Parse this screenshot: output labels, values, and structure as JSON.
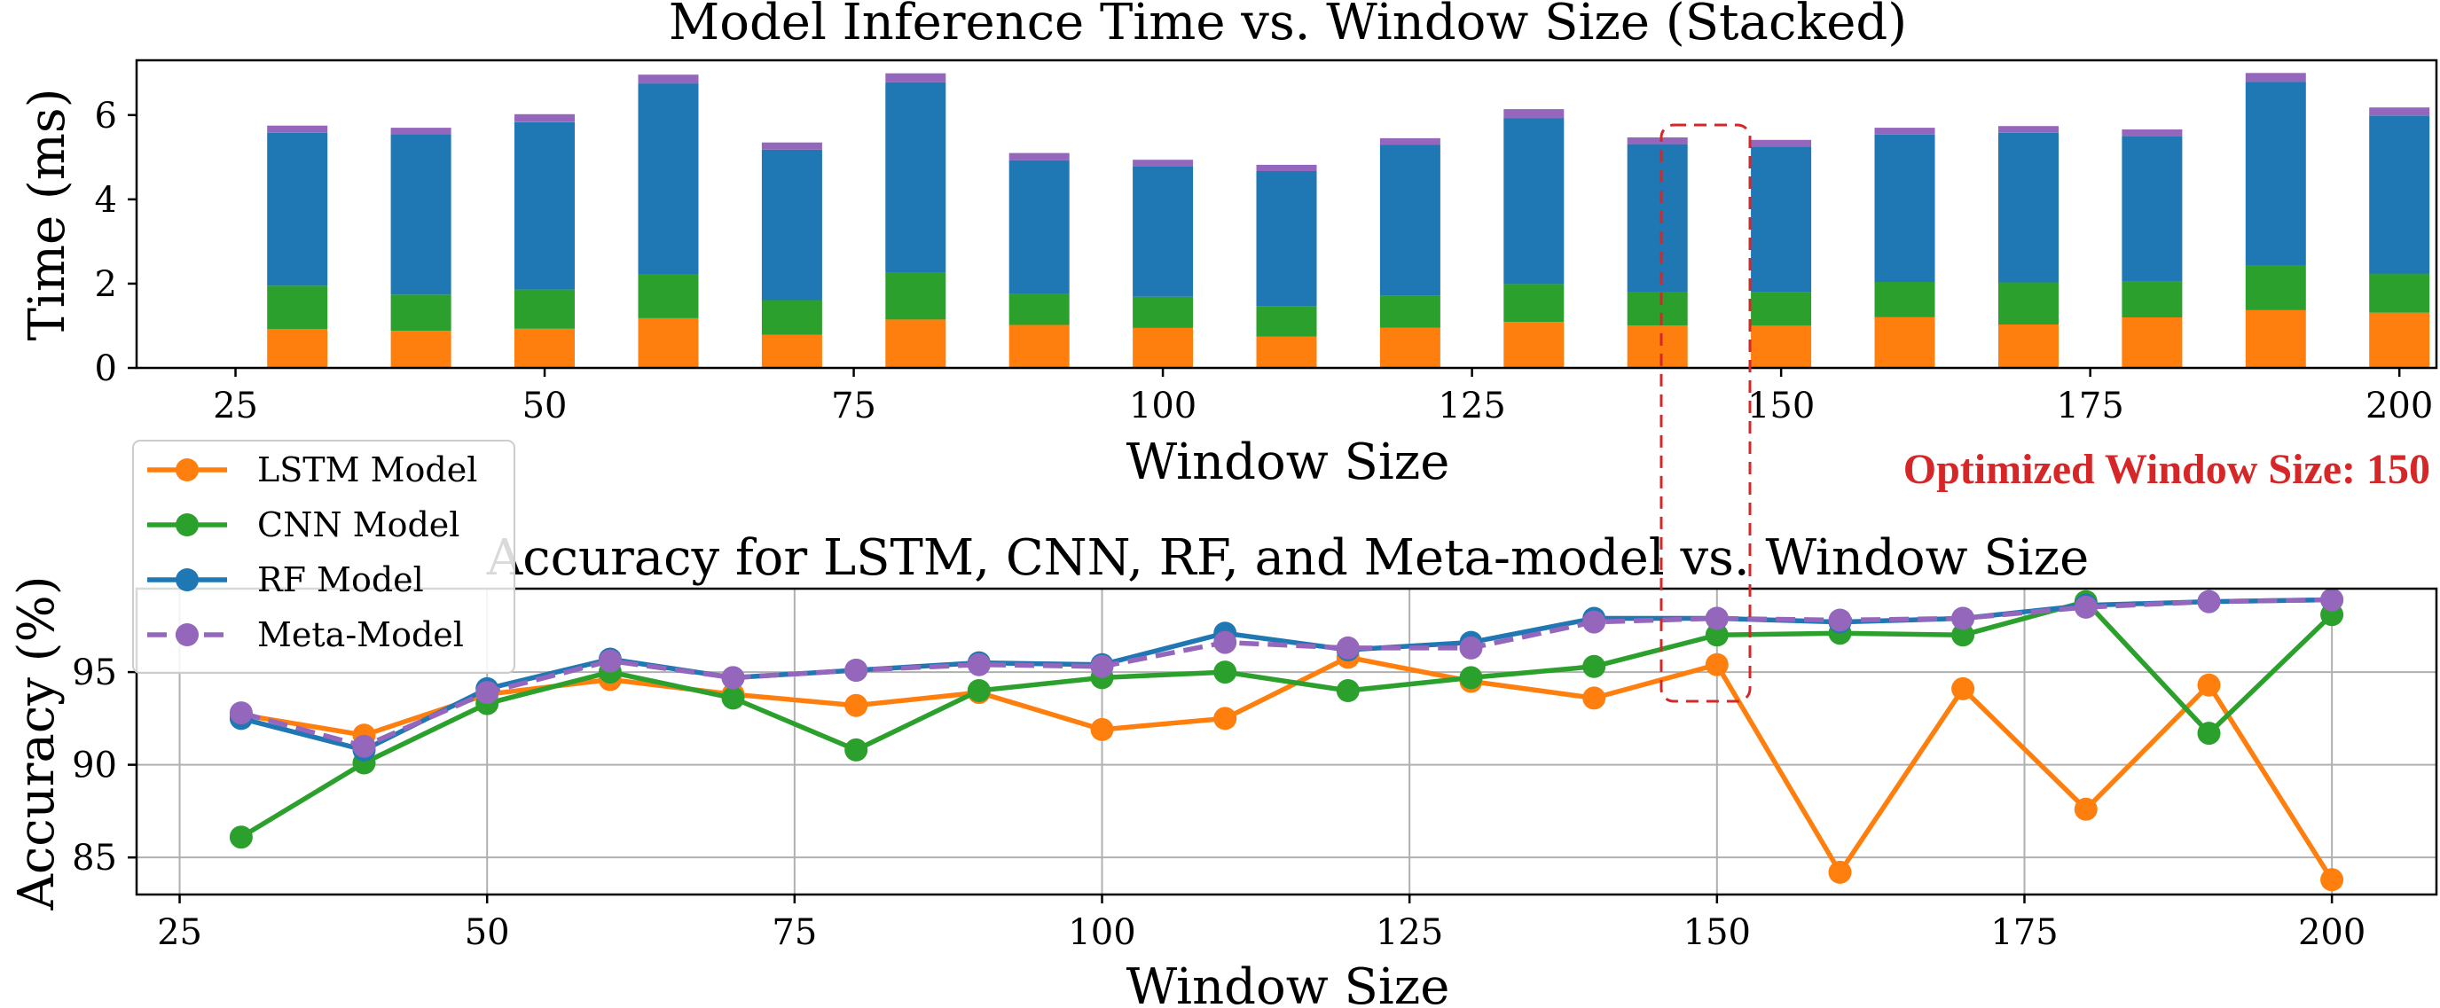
{
  "colors": {
    "lstm": "#ff7f0e",
    "cnn": "#2ca02c",
    "rf": "#1f77b4",
    "meta": "#9467bd",
    "grid": "#b0b0b0",
    "annotation": "#d62728"
  },
  "chart_data": [
    {
      "type": "bar",
      "stacked": true,
      "title": "Model Inference Time vs. Window Size (Stacked)",
      "xlabel": "Window Size",
      "ylabel": "Time (ms)",
      "xlim": [
        17,
        203
      ],
      "ylim": [
        0,
        7.3
      ],
      "xticks": [
        25,
        50,
        75,
        100,
        125,
        150,
        175,
        200
      ],
      "yticks": [
        0,
        2,
        4,
        6
      ],
      "grid": false,
      "categories": [
        30,
        40,
        50,
        60,
        70,
        80,
        90,
        100,
        110,
        120,
        130,
        140,
        150,
        160,
        170,
        180,
        190,
        200
      ],
      "series": [
        {
          "name": "LSTM Model",
          "key": "lstm",
          "values": [
            0.92,
            0.88,
            0.93,
            1.18,
            0.79,
            1.15,
            1.02,
            0.95,
            0.74,
            0.95,
            1.09,
            1.01,
            1.0,
            1.2,
            1.03,
            1.2,
            1.37,
            1.31
          ]
        },
        {
          "name": "CNN Model",
          "key": "cnn",
          "values": [
            1.03,
            0.86,
            0.93,
            1.05,
            0.82,
            1.11,
            0.74,
            0.74,
            0.73,
            0.76,
            0.9,
            0.8,
            0.8,
            0.84,
            1.0,
            0.85,
            1.07,
            0.93
          ]
        },
        {
          "name": "RF Model",
          "key": "rf",
          "values": [
            3.63,
            3.81,
            3.97,
            4.52,
            3.57,
            4.52,
            3.17,
            3.1,
            3.2,
            3.58,
            3.94,
            3.5,
            3.45,
            3.5,
            3.55,
            3.45,
            4.35,
            3.75
          ]
        },
        {
          "name": "Meta-Model",
          "key": "meta",
          "values": [
            0.17,
            0.15,
            0.19,
            0.21,
            0.17,
            0.21,
            0.17,
            0.15,
            0.15,
            0.16,
            0.21,
            0.16,
            0.16,
            0.16,
            0.16,
            0.16,
            0.21,
            0.19
          ]
        }
      ]
    },
    {
      "type": "line",
      "title": "Accuracy for LSTM, CNN, RF, and Meta-model vs. Window Size",
      "xlabel": "Window Size",
      "ylabel": "Accuracy (%)",
      "xlim": [
        21.5,
        208.5
      ],
      "ylim": [
        83.0,
        99.5
      ],
      "xticks": [
        25,
        50,
        75,
        100,
        125,
        150,
        175,
        200
      ],
      "yticks": [
        85,
        90,
        95
      ],
      "grid": true,
      "legend": "upper-left",
      "x": [
        30,
        40,
        50,
        60,
        70,
        80,
        90,
        100,
        110,
        120,
        130,
        140,
        150,
        160,
        170,
        180,
        190,
        200
      ],
      "series": [
        {
          "name": "LSTM Model",
          "key": "lstm",
          "dashed": false,
          "values": [
            92.7,
            91.6,
            93.8,
            94.6,
            93.8,
            93.2,
            93.9,
            91.9,
            92.5,
            95.8,
            94.5,
            93.6,
            95.4,
            84.2,
            94.1,
            87.6,
            94.3,
            83.8
          ]
        },
        {
          "name": "CNN Model",
          "key": "cnn",
          "dashed": false,
          "values": [
            86.1,
            90.1,
            93.3,
            95.0,
            93.6,
            90.8,
            94.0,
            94.7,
            95.0,
            94.0,
            94.7,
            95.3,
            97.0,
            97.1,
            97.0,
            98.8,
            91.7,
            98.1
          ]
        },
        {
          "name": "RF Model",
          "key": "rf",
          "dashed": false,
          "values": [
            92.5,
            90.8,
            94.1,
            95.7,
            94.7,
            95.1,
            95.5,
            95.4,
            97.1,
            96.2,
            96.6,
            97.9,
            97.9,
            97.7,
            97.9,
            98.6,
            98.8,
            98.9
          ]
        },
        {
          "name": "Meta-Model",
          "key": "meta",
          "dashed": true,
          "values": [
            92.8,
            91.0,
            93.9,
            95.6,
            94.7,
            95.1,
            95.4,
            95.3,
            96.6,
            96.3,
            96.3,
            97.7,
            97.9,
            97.8,
            97.9,
            98.5,
            98.8,
            98.9
          ]
        }
      ]
    }
  ],
  "annotation": {
    "text": "Optimized Window Size: 150",
    "window": 150
  }
}
